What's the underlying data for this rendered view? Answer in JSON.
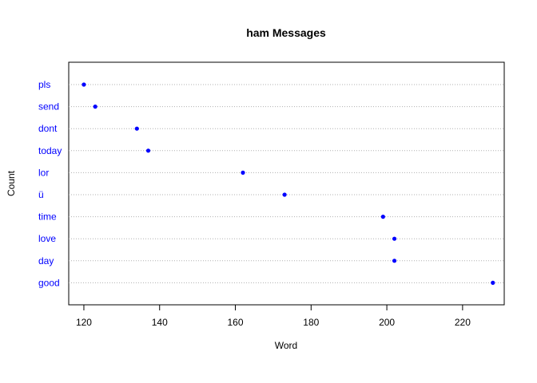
{
  "chart_data": {
    "type": "scatter",
    "subtype": "dotchart",
    "title": "ham Messages",
    "xlabel": "Word",
    "ylabel": "Count",
    "categories": [
      "good",
      "day",
      "love",
      "time",
      "ü",
      "lor",
      "today",
      "dont",
      "send",
      "pls"
    ],
    "values": [
      228,
      202,
      202,
      199,
      173,
      162,
      137,
      134,
      123,
      120
    ],
    "xlim": [
      116,
      231
    ],
    "xticks": [
      120,
      140,
      160,
      180,
      200,
      220
    ],
    "grid": "horizontal dotted",
    "legend": "none",
    "colors": {
      "point": "#0000ff",
      "label": "#0000ff",
      "grid": "#b0b0b0",
      "axis": "#000000"
    }
  }
}
